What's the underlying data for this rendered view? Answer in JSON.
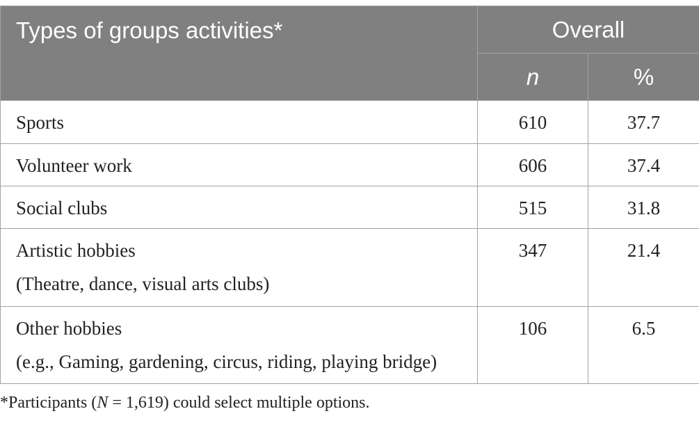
{
  "header": {
    "title": "Types of groups activities*",
    "overall": "Overall",
    "n_label": "n",
    "pct_label": "%"
  },
  "rows": [
    {
      "label": "Sports",
      "n": "610",
      "pct": "37.7"
    },
    {
      "label": "Volunteer work",
      "n": "606",
      "pct": "37.4"
    },
    {
      "label": "Social clubs",
      "n": "515",
      "pct": "31.8"
    },
    {
      "label": "Artistic hobbies",
      "sublabel": "(Theatre, dance, visual arts clubs)",
      "n": "347",
      "pct": "21.4"
    },
    {
      "label": "Other hobbies",
      "sublabel": "(e.g., Gaming, gardening, circus, riding, playing bridge)",
      "n": "106",
      "pct": "6.5"
    }
  ],
  "footnote": {
    "prefix": "*Participants (",
    "var": "N",
    "eq": " = 1,619",
    "suffix": ") could select multiple options."
  },
  "colors": {
    "header_bg": "#7f807f",
    "header_text": "#ffffff",
    "border": "#a3a3a3"
  }
}
